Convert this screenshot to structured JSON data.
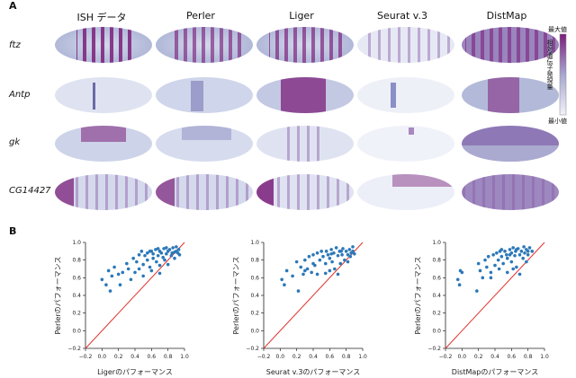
{
  "panel_a": {
    "letter": "A",
    "columns": [
      "ISH データ",
      "Perler",
      "Liger",
      "Seurat v.3",
      "DistMap"
    ],
    "rows": [
      "ftz",
      "Antp",
      "gk",
      "CG14427"
    ],
    "colorbar": {
      "max_label": "最大値",
      "min_label": "最小値",
      "title": "相対遺伝子発現量",
      "low_color": "#f0f2fa",
      "high_color": "#7b1f7a"
    }
  },
  "panel_b": {
    "letter": "B"
  },
  "chart_data": [
    {
      "type": "scatter",
      "xlabel": "Ligerのパフォーマンス",
      "ylabel": "Perlerのパフォーマンス",
      "xlim": [
        -0.2,
        1.0
      ],
      "ylim": [
        -0.2,
        1.0
      ],
      "xticks": [
        "−0.2",
        "0.0",
        "0.2",
        "0.4",
        "0.6",
        "0.8",
        "1.0"
      ],
      "yticks": [
        "−0.2",
        "0.0",
        "0.2",
        "0.4",
        "0.6",
        "0.8",
        "1.0"
      ],
      "diagonal": true,
      "point_color": "#2b78b8",
      "line_color": "#e0302a",
      "points": [
        [
          0.0,
          0.58
        ],
        [
          0.05,
          0.52
        ],
        [
          0.08,
          0.68
        ],
        [
          0.12,
          0.62
        ],
        [
          0.1,
          0.45
        ],
        [
          0.15,
          0.72
        ],
        [
          0.2,
          0.64
        ],
        [
          0.22,
          0.52
        ],
        [
          0.25,
          0.66
        ],
        [
          0.3,
          0.76
        ],
        [
          0.32,
          0.7
        ],
        [
          0.35,
          0.58
        ],
        [
          0.38,
          0.82
        ],
        [
          0.4,
          0.66
        ],
        [
          0.42,
          0.78
        ],
        [
          0.45,
          0.86
        ],
        [
          0.48,
          0.9
        ],
        [
          0.5,
          0.75
        ],
        [
          0.52,
          0.85
        ],
        [
          0.55,
          0.8
        ],
        [
          0.55,
          0.88
        ],
        [
          0.58,
          0.72
        ],
        [
          0.6,
          0.9
        ],
        [
          0.62,
          0.82
        ],
        [
          0.62,
          0.87
        ],
        [
          0.65,
          0.92
        ],
        [
          0.66,
          0.78
        ],
        [
          0.68,
          0.85
        ],
        [
          0.7,
          0.9
        ],
        [
          0.7,
          0.74
        ],
        [
          0.72,
          0.88
        ],
        [
          0.74,
          0.83
        ],
        [
          0.75,
          0.93
        ],
        [
          0.76,
          0.8
        ],
        [
          0.78,
          0.87
        ],
        [
          0.8,
          0.9
        ],
        [
          0.8,
          0.75
        ],
        [
          0.82,
          0.92
        ],
        [
          0.84,
          0.85
        ],
        [
          0.85,
          0.88
        ],
        [
          0.86,
          0.94
        ],
        [
          0.88,
          0.82
        ],
        [
          0.9,
          0.9
        ],
        [
          0.9,
          0.95
        ],
        [
          0.92,
          0.88
        ],
        [
          0.93,
          0.92
        ],
        [
          0.6,
          0.68
        ],
        [
          0.5,
          0.62
        ],
        [
          0.45,
          0.7
        ],
        [
          0.7,
          0.65
        ],
        [
          0.78,
          0.94
        ],
        [
          0.68,
          0.93
        ],
        [
          0.58,
          0.9
        ],
        [
          0.88,
          0.89
        ],
        [
          0.94,
          0.86
        ]
      ]
    },
    {
      "type": "scatter",
      "xlabel": "Seurat v.3のパフォーマンス",
      "ylabel": "Perlerのパフォーマンス",
      "xlim": [
        -0.2,
        1.0
      ],
      "ylim": [
        -0.2,
        1.0
      ],
      "xticks": [
        "−0.2",
        "0.0",
        "0.2",
        "0.4",
        "0.6",
        "0.8",
        "1.0"
      ],
      "yticks": [
        "−0.2",
        "0.0",
        "0.2",
        "0.4",
        "0.6",
        "0.8",
        "1.0"
      ],
      "diagonal": true,
      "point_color": "#2b78b8",
      "line_color": "#e0302a",
      "points": [
        [
          0.02,
          0.58
        ],
        [
          0.05,
          0.52
        ],
        [
          0.08,
          0.68
        ],
        [
          0.15,
          0.62
        ],
        [
          0.2,
          0.78
        ],
        [
          0.22,
          0.45
        ],
        [
          0.25,
          0.72
        ],
        [
          0.28,
          0.64
        ],
        [
          0.3,
          0.8
        ],
        [
          0.33,
          0.7
        ],
        [
          0.35,
          0.84
        ],
        [
          0.38,
          0.66
        ],
        [
          0.4,
          0.86
        ],
        [
          0.42,
          0.74
        ],
        [
          0.45,
          0.88
        ],
        [
          0.48,
          0.8
        ],
        [
          0.5,
          0.9
        ],
        [
          0.52,
          0.84
        ],
        [
          0.55,
          0.76
        ],
        [
          0.56,
          0.9
        ],
        [
          0.58,
          0.86
        ],
        [
          0.6,
          0.82
        ],
        [
          0.62,
          0.92
        ],
        [
          0.63,
          0.78
        ],
        [
          0.65,
          0.88
        ],
        [
          0.66,
          0.7
        ],
        [
          0.68,
          0.94
        ],
        [
          0.7,
          0.85
        ],
        [
          0.72,
          0.9
        ],
        [
          0.73,
          0.76
        ],
        [
          0.75,
          0.86
        ],
        [
          0.76,
          0.93
        ],
        [
          0.78,
          0.8
        ],
        [
          0.8,
          0.9
        ],
        [
          0.82,
          0.86
        ],
        [
          0.84,
          0.92
        ],
        [
          0.85,
          0.84
        ],
        [
          0.86,
          0.88
        ],
        [
          0.88,
          0.9
        ],
        [
          0.88,
          0.95
        ],
        [
          0.9,
          0.87
        ],
        [
          0.7,
          0.64
        ],
        [
          0.6,
          0.68
        ],
        [
          0.55,
          0.65
        ],
        [
          0.45,
          0.64
        ],
        [
          0.82,
          0.78
        ],
        [
          0.4,
          0.76
        ],
        [
          0.3,
          0.68
        ],
        [
          0.62,
          0.87
        ],
        [
          0.74,
          0.9
        ]
      ]
    },
    {
      "type": "scatter",
      "xlabel": "DistMapのパフォーマンス",
      "ylabel": "Perlerのパフォーマンス",
      "xlim": [
        -0.2,
        1.0
      ],
      "ylim": [
        -0.2,
        1.0
      ],
      "xticks": [
        "−0.2",
        "0.0",
        "0.2",
        "0.4",
        "0.6",
        "0.8",
        "1.0"
      ],
      "yticks": [
        "−0.2",
        "0.0",
        "0.2",
        "0.4",
        "0.6",
        "0.8",
        "1.0"
      ],
      "diagonal": true,
      "point_color": "#2b78b8",
      "line_color": "#e0302a",
      "points": [
        [
          -0.05,
          0.58
        ],
        [
          -0.02,
          0.68
        ],
        [
          0.0,
          0.66
        ],
        [
          -0.03,
          0.52
        ],
        [
          0.18,
          0.45
        ],
        [
          0.2,
          0.76
        ],
        [
          0.22,
          0.68
        ],
        [
          0.25,
          0.6
        ],
        [
          0.28,
          0.8
        ],
        [
          0.3,
          0.72
        ],
        [
          0.32,
          0.84
        ],
        [
          0.35,
          0.66
        ],
        [
          0.38,
          0.86
        ],
        [
          0.4,
          0.74
        ],
        [
          0.42,
          0.88
        ],
        [
          0.44,
          0.8
        ],
        [
          0.46,
          0.9
        ],
        [
          0.48,
          0.84
        ],
        [
          0.5,
          0.76
        ],
        [
          0.52,
          0.9
        ],
        [
          0.54,
          0.86
        ],
        [
          0.55,
          0.82
        ],
        [
          0.58,
          0.92
        ],
        [
          0.6,
          0.78
        ],
        [
          0.6,
          0.88
        ],
        [
          0.62,
          0.94
        ],
        [
          0.64,
          0.85
        ],
        [
          0.65,
          0.9
        ],
        [
          0.66,
          0.72
        ],
        [
          0.68,
          0.93
        ],
        [
          0.7,
          0.86
        ],
        [
          0.72,
          0.9
        ],
        [
          0.74,
          0.82
        ],
        [
          0.75,
          0.95
        ],
        [
          0.76,
          0.88
        ],
        [
          0.78,
          0.92
        ],
        [
          0.8,
          0.86
        ],
        [
          0.82,
          0.94
        ],
        [
          0.85,
          0.9
        ],
        [
          0.7,
          0.64
        ],
        [
          0.62,
          0.7
        ],
        [
          0.55,
          0.66
        ],
        [
          0.45,
          0.7
        ],
        [
          0.35,
          0.6
        ],
        [
          0.78,
          0.78
        ],
        [
          0.48,
          0.92
        ],
        [
          0.66,
          0.92
        ],
        [
          0.58,
          0.86
        ],
        [
          0.8,
          0.9
        ]
      ]
    }
  ]
}
